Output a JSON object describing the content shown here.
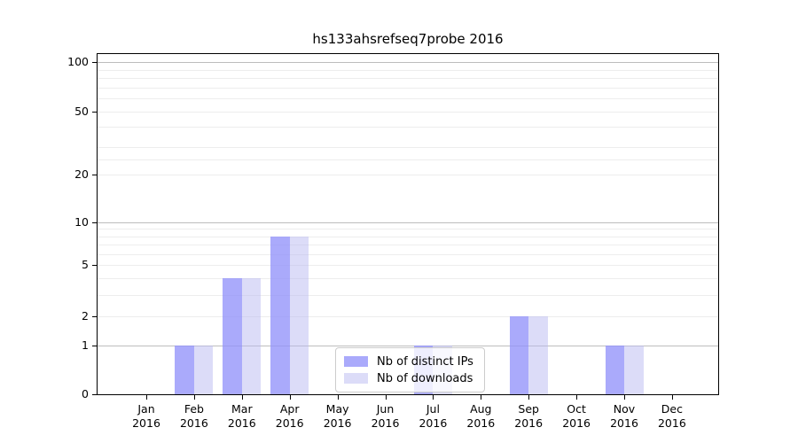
{
  "chart_data": {
    "type": "bar",
    "title": "hs133ahsrefseq7probe 2016",
    "months": [
      "Jan",
      "Feb",
      "Mar",
      "Apr",
      "May",
      "Jun",
      "Jul",
      "Aug",
      "Sep",
      "Oct",
      "Nov",
      "Dec"
    ],
    "year": "2016",
    "series": [
      {
        "name": "Nb of distinct IPs",
        "color": "#9292fa",
        "opacity": 0.78,
        "values": [
          0,
          1,
          4,
          8,
          0,
          0,
          1,
          0,
          2,
          0,
          1,
          0
        ]
      },
      {
        "name": "Nb of downloads",
        "color": "#b9b9f2",
        "opacity": 0.5,
        "values": [
          0,
          1,
          4,
          8,
          0,
          0,
          1,
          0,
          2,
          0,
          1,
          0
        ]
      }
    ],
    "y_ticks": [
      0,
      1,
      2,
      5,
      10,
      20,
      50,
      100
    ],
    "y_scale": "log(1+v)",
    "ylim": [
      0,
      110
    ],
    "xlabel": "",
    "ylabel": "",
    "grid": true,
    "legend_position": "inside lower-center",
    "colors": {
      "major_grid": "#bdbdbd",
      "minor_grid": "#ededed",
      "axis": "#000000",
      "background": "#ffffff"
    }
  }
}
